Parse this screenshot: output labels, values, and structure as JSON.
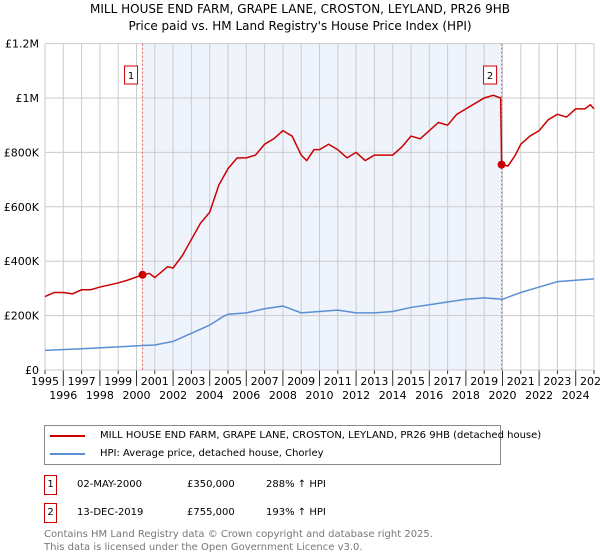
{
  "title": "MILL HOUSE END FARM, GRAPE LANE, CROSTON, LEYLAND, PR26 9HB",
  "subtitle": "Price paid vs. HM Land Registry's House Price Index (HPI)",
  "chart_data": {
    "type": "line",
    "title": "MILL HOUSE END FARM, GRAPE LANE, CROSTON, LEYLAND, PR26 9HB",
    "xlim": [
      1995,
      2025
    ],
    "ylim": [
      0,
      1200000
    ],
    "x_ticks": [
      "1995",
      "1996",
      "1997",
      "1998",
      "1999",
      "2000",
      "2001",
      "2002",
      "2003",
      "2004",
      "2005",
      "2006",
      "2007",
      "2008",
      "2009",
      "2010",
      "2011",
      "2012",
      "2013",
      "2014",
      "2015",
      "2016",
      "2017",
      "2018",
      "2019",
      "2020",
      "2021",
      "2022",
      "2023",
      "2024",
      "2025"
    ],
    "y_ticks": [
      {
        "v": 0,
        "label": "£0"
      },
      {
        "v": 200000,
        "label": "£200K"
      },
      {
        "v": 400000,
        "label": "£400K"
      },
      {
        "v": 600000,
        "label": "£600K"
      },
      {
        "v": 800000,
        "label": "£800K"
      },
      {
        "v": 1000000,
        "label": "£1M"
      },
      {
        "v": 1200000,
        "label": "£1.2M"
      }
    ],
    "grid": true,
    "colors": {
      "property": "#cc0000",
      "hpi": "#5b8fd4",
      "shade": "#eef3fc"
    },
    "series": [
      {
        "name": "MILL HOUSE END FARM, GRAPE LANE, CROSTON, LEYLAND, PR26 9HB (detached house)",
        "x": [
          1995,
          1995.5,
          1996,
          1996.5,
          1997,
          1997.5,
          1998,
          1999,
          1999.5,
          2000.33,
          2000.7,
          2001,
          2001.7,
          2002,
          2002.5,
          2003,
          2003.5,
          2004,
          2004.5,
          2005,
          2005.5,
          2006,
          2006.5,
          2007,
          2007.5,
          2008,
          2008.5,
          2009,
          2009.3,
          2009.7,
          2010,
          2010.5,
          2011,
          2011.5,
          2012,
          2012.5,
          2013,
          2013.5,
          2014,
          2014.5,
          2015,
          2015.5,
          2016,
          2016.5,
          2017,
          2017.5,
          2018,
          2018.5,
          2019,
          2019.5,
          2019.9,
          2019.95,
          2020.3,
          2020.7,
          2021,
          2021.5,
          2022,
          2022.5,
          2023,
          2023.5,
          2024,
          2024.5,
          2024.8,
          2025
        ],
        "y": [
          270000,
          285000,
          285000,
          280000,
          295000,
          295000,
          305000,
          320000,
          330000,
          350000,
          355000,
          340000,
          380000,
          375000,
          420000,
          480000,
          540000,
          580000,
          680000,
          740000,
          780000,
          780000,
          790000,
          830000,
          850000,
          880000,
          860000,
          790000,
          770000,
          810000,
          810000,
          830000,
          810000,
          780000,
          800000,
          770000,
          790000,
          790000,
          790000,
          820000,
          860000,
          850000,
          880000,
          910000,
          900000,
          940000,
          960000,
          980000,
          1000000,
          1010000,
          1000000,
          755000,
          750000,
          790000,
          830000,
          860000,
          880000,
          920000,
          940000,
          930000,
          960000,
          960000,
          975000,
          960000
        ]
      },
      {
        "name": "HPI: Average price, detached house, Chorley",
        "x": [
          1995,
          1997,
          1999,
          2000.33,
          2001,
          2002,
          2003,
          2004,
          2004.7,
          2005,
          2006,
          2007,
          2008,
          2009,
          2010,
          2011,
          2012,
          2013,
          2014,
          2015,
          2016,
          2017,
          2018,
          2019,
          2020,
          2021,
          2022,
          2023,
          2024,
          2025
        ],
        "y": [
          72000,
          78000,
          85000,
          90000,
          92000,
          105000,
          135000,
          165000,
          195000,
          205000,
          210000,
          225000,
          235000,
          210000,
          215000,
          220000,
          210000,
          210000,
          215000,
          230000,
          240000,
          250000,
          260000,
          265000,
          260000,
          285000,
          305000,
          325000,
          330000,
          335000
        ]
      }
    ],
    "sales": [
      {
        "num": "1",
        "x": 2000.33,
        "y": 350000,
        "date": "02-MAY-2000",
        "price": "£350,000",
        "hpi": "288% ↑ HPI"
      },
      {
        "num": "2",
        "x": 2019.95,
        "y": 755000,
        "date": "13-DEC-2019",
        "price": "£755,000",
        "hpi": "193% ↑ HPI"
      }
    ]
  },
  "legend": {
    "property": "MILL HOUSE END FARM, GRAPE LANE, CROSTON, LEYLAND, PR26 9HB (detached house)",
    "hpi": "HPI: Average price, detached house, Chorley"
  },
  "footer": {
    "line1": "Contains HM Land Registry data © Crown copyright and database right 2025.",
    "line2": "This data is licensed under the Open Government Licence v3.0."
  }
}
